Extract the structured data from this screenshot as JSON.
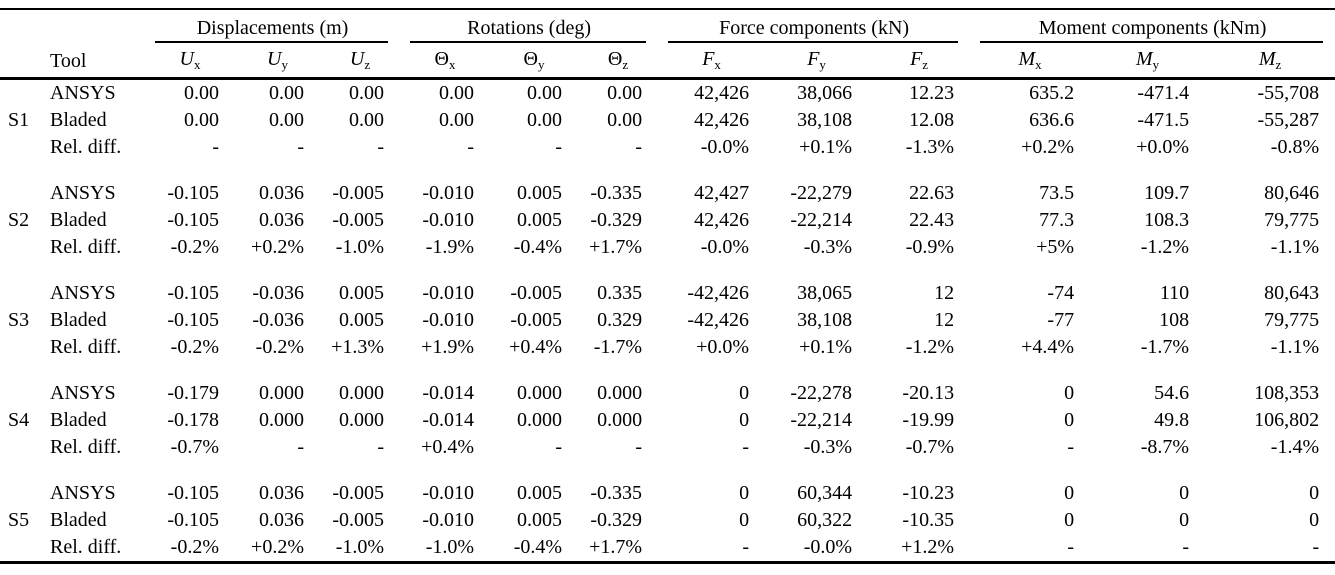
{
  "table": {
    "group_headers": [
      {
        "label": "Displacements (m)"
      },
      {
        "label": "Rotations (deg)"
      },
      {
        "label": "Force components (kN)"
      },
      {
        "label": "Moment components (kNm)"
      }
    ],
    "tool_header": "Tool",
    "columns": [
      {
        "base": "U",
        "sub": "x"
      },
      {
        "base": "U",
        "sub": "y"
      },
      {
        "base": "U",
        "sub": "z"
      },
      {
        "base": "Θ",
        "sub": "x"
      },
      {
        "base": "Θ",
        "sub": "y"
      },
      {
        "base": "Θ",
        "sub": "z"
      },
      {
        "base": "F",
        "sub": "x"
      },
      {
        "base": "F",
        "sub": "y"
      },
      {
        "base": "F",
        "sub": "z"
      },
      {
        "base": "M",
        "sub": "x"
      },
      {
        "base": "M",
        "sub": "y"
      },
      {
        "base": "M",
        "sub": "z"
      }
    ],
    "sections": [
      {
        "id": "S1",
        "rows": [
          {
            "label": "ANSYS",
            "values": [
              "0.00",
              "0.00",
              "0.00",
              "0.00",
              "0.00",
              "0.00",
              "42,426",
              "38,066",
              "12.23",
              "635.2",
              "-471.4",
              "-55,708"
            ]
          },
          {
            "label": "Bladed",
            "values": [
              "0.00",
              "0.00",
              "0.00",
              "0.00",
              "0.00",
              "0.00",
              "42,426",
              "38,108",
              "12.08",
              "636.6",
              "-471.5",
              "-55,287"
            ]
          },
          {
            "label": "Rel. diff.",
            "values": [
              "-",
              "-",
              "-",
              "-",
              "-",
              "-",
              "-0.0%",
              "+0.1%",
              "-1.3%",
              "+0.2%",
              "+0.0%",
              "-0.8%"
            ]
          }
        ]
      },
      {
        "id": "S2",
        "rows": [
          {
            "label": "ANSYS",
            "values": [
              "-0.105",
              "0.036",
              "-0.005",
              "-0.010",
              "0.005",
              "-0.335",
              "42,427",
              "-22,279",
              "22.63",
              "73.5",
              "109.7",
              "80,646"
            ]
          },
          {
            "label": "Bladed",
            "values": [
              "-0.105",
              "0.036",
              "-0.005",
              "-0.010",
              "0.005",
              "-0.329",
              "42,426",
              "-22,214",
              "22.43",
              "77.3",
              "108.3",
              "79,775"
            ]
          },
          {
            "label": "Rel. diff.",
            "values": [
              "-0.2%",
              "+0.2%",
              "-1.0%",
              "-1.9%",
              "-0.4%",
              "+1.7%",
              "-0.0%",
              "-0.3%",
              "-0.9%",
              "+5%",
              "-1.2%",
              "-1.1%"
            ]
          }
        ]
      },
      {
        "id": "S3",
        "rows": [
          {
            "label": "ANSYS",
            "values": [
              "-0.105",
              "-0.036",
              "0.005",
              "-0.010",
              "-0.005",
              "0.335",
              "-42,426",
              "38,065",
              "12",
              "-74",
              "110",
              "80,643"
            ]
          },
          {
            "label": "Bladed",
            "values": [
              "-0.105",
              "-0.036",
              "0.005",
              "-0.010",
              "-0.005",
              "0.329",
              "-42,426",
              "38,108",
              "12",
              "-77",
              "108",
              "79,775"
            ]
          },
          {
            "label": "Rel. diff.",
            "values": [
              "-0.2%",
              "-0.2%",
              "+1.3%",
              "+1.9%",
              "+0.4%",
              "-1.7%",
              "+0.0%",
              "+0.1%",
              "-1.2%",
              "+4.4%",
              "-1.7%",
              "-1.1%"
            ]
          }
        ]
      },
      {
        "id": "S4",
        "rows": [
          {
            "label": "ANSYS",
            "values": [
              "-0.179",
              "0.000",
              "0.000",
              "-0.014",
              "0.000",
              "0.000",
              "0",
              "-22,278",
              "-20.13",
              "0",
              "54.6",
              "108,353"
            ]
          },
          {
            "label": "Bladed",
            "values": [
              "-0.178",
              "0.000",
              "0.000",
              "-0.014",
              "0.000",
              "0.000",
              "0",
              "-22,214",
              "-19.99",
              "0",
              "49.8",
              "106,802"
            ]
          },
          {
            "label": "Rel. diff.",
            "values": [
              "-0.7%",
              "-",
              "-",
              "+0.4%",
              "-",
              "-",
              "-",
              "-0.3%",
              "-0.7%",
              "-",
              "-8.7%",
              "-1.4%"
            ]
          }
        ]
      },
      {
        "id": "S5",
        "rows": [
          {
            "label": "ANSYS",
            "values": [
              "-0.105",
              "0.036",
              "-0.005",
              "-0.010",
              "0.005",
              "-0.335",
              "0",
              "60,344",
              "-10.23",
              "0",
              "0",
              "0"
            ]
          },
          {
            "label": "Bladed",
            "values": [
              "-0.105",
              "0.036",
              "-0.005",
              "-0.010",
              "0.005",
              "-0.329",
              "0",
              "60,322",
              "-10.35",
              "0",
              "0",
              "0"
            ]
          },
          {
            "label": "Rel. diff.",
            "values": [
              "-0.2%",
              "+0.2%",
              "-1.0%",
              "-1.0%",
              "-0.4%",
              "+1.7%",
              "-",
              "-0.0%",
              "+1.2%",
              "-",
              "-",
              "-"
            ]
          }
        ]
      }
    ]
  }
}
